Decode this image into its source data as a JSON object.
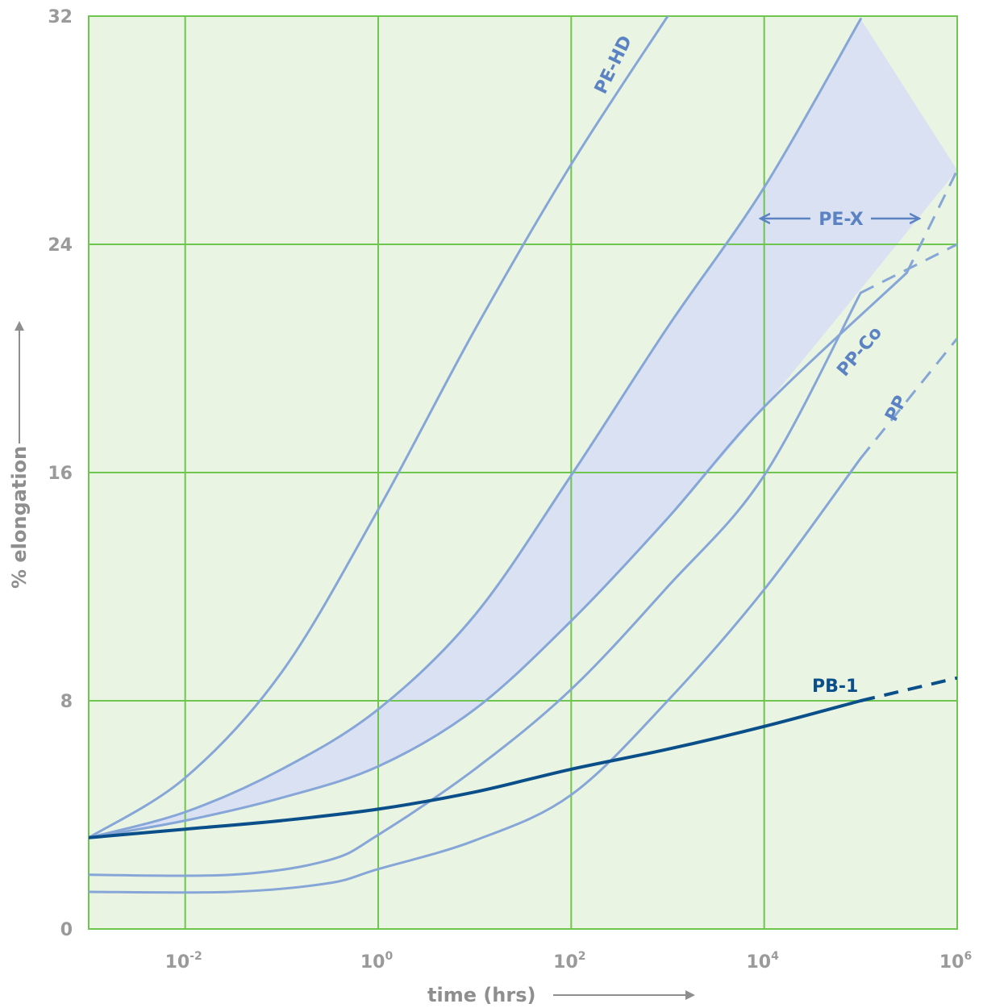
{
  "chart_data": {
    "type": "line",
    "title": "",
    "xlabel": "time (hrs)",
    "ylabel": "% elongation",
    "x_scale": "log",
    "xlim": [
      0.001,
      1000000
    ],
    "ylim": [
      0,
      32
    ],
    "x_ticks": [
      {
        "value": 0.01,
        "base": "10",
        "exp": "-2"
      },
      {
        "value": 1,
        "base": "10",
        "exp": "0"
      },
      {
        "value": 100,
        "base": "10",
        "exp": "2"
      },
      {
        "value": 10000,
        "base": "10",
        "exp": "4"
      },
      {
        "value": 1000000,
        "base": "10",
        "exp": "6"
      }
    ],
    "y_ticks": [
      "0",
      "8",
      "16",
      "24",
      "32"
    ],
    "grid": true,
    "colors": {
      "background": "#eaf4e2",
      "grid": "#6ec64e",
      "curve": "#86a6d8",
      "band": "#d7dff4",
      "pb1": "#0b4f8a",
      "axis_text": "#9a9a9a",
      "label": "#5b82c2"
    },
    "band": {
      "name": "PE-X",
      "upper": [
        [
          0.001,
          3.2
        ],
        [
          0.01,
          4.1
        ],
        [
          0.1,
          5.6
        ],
        [
          1,
          7.7
        ],
        [
          10,
          11.0
        ],
        [
          100,
          15.9
        ],
        [
          1000,
          21.1
        ],
        [
          10000,
          26.0
        ],
        [
          100000,
          31.9
        ]
      ],
      "lower": [
        [
          0.001,
          3.2
        ],
        [
          0.01,
          3.8
        ],
        [
          0.1,
          4.6
        ],
        [
          1,
          5.7
        ],
        [
          10,
          7.7
        ],
        [
          100,
          10.8
        ],
        [
          1000,
          14.4
        ],
        [
          10000,
          18.3
        ],
        [
          1000000,
          26.6
        ]
      ],
      "lower_dashed_from": 300000
    },
    "series": [
      {
        "name": "PE-HD",
        "style": "solid",
        "values": [
          [
            0.001,
            3.2
          ],
          [
            0.01,
            5.3
          ],
          [
            0.1,
            9.0
          ],
          [
            1,
            14.7
          ],
          [
            10,
            21.0
          ],
          [
            100,
            26.8
          ],
          [
            1000,
            32.0
          ]
        ]
      },
      {
        "name": "PE-X",
        "style": "solid",
        "values": [
          [
            0.001,
            3.2
          ],
          [
            0.01,
            4.1
          ],
          [
            0.1,
            5.6
          ],
          [
            1,
            7.7
          ],
          [
            10,
            11.0
          ],
          [
            100,
            15.9
          ],
          [
            1000,
            21.1
          ],
          [
            10000,
            26.0
          ],
          [
            100000,
            31.9
          ]
        ]
      },
      {
        "name": "PE-X",
        "style": "solid",
        "dashed_from": 300000,
        "values": [
          [
            0.001,
            3.2
          ],
          [
            0.01,
            3.8
          ],
          [
            0.1,
            4.6
          ],
          [
            1,
            5.7
          ],
          [
            10,
            7.7
          ],
          [
            100,
            10.8
          ],
          [
            1000,
            14.4
          ],
          [
            10000,
            18.3
          ],
          [
            300000,
            23.0
          ],
          [
            1000000,
            26.6
          ]
        ]
      },
      {
        "name": "PP-Co",
        "style": "solid",
        "dashed_from": 100000,
        "values": [
          [
            0.001,
            1.9
          ],
          [
            0.03,
            1.9
          ],
          [
            0.3,
            2.4
          ],
          [
            1,
            3.3
          ],
          [
            10,
            5.6
          ],
          [
            100,
            8.4
          ],
          [
            1000,
            12.0
          ],
          [
            10000,
            15.9
          ],
          [
            100000,
            22.3
          ],
          [
            1000000,
            24.0
          ]
        ]
      },
      {
        "name": "PP",
        "style": "solid",
        "dashed_from": 100000,
        "values": [
          [
            0.001,
            1.3
          ],
          [
            0.03,
            1.3
          ],
          [
            0.3,
            1.6
          ],
          [
            1,
            2.1
          ],
          [
            10,
            3.1
          ],
          [
            100,
            4.7
          ],
          [
            1000,
            8.0
          ],
          [
            10000,
            11.9
          ],
          [
            100000,
            16.5
          ],
          [
            1000000,
            20.7
          ]
        ]
      },
      {
        "name": "PB-1",
        "style": "solid",
        "dashed_from": 100000,
        "values": [
          [
            0.001,
            3.2
          ],
          [
            0.01,
            3.5
          ],
          [
            0.1,
            3.8
          ],
          [
            1,
            4.2
          ],
          [
            10,
            4.8
          ],
          [
            100,
            5.6
          ],
          [
            1000,
            6.3
          ],
          [
            10000,
            7.1
          ],
          [
            100000,
            8.0
          ],
          [
            1000000,
            8.8
          ]
        ]
      }
    ],
    "annotations": [
      "PE-HD",
      "PE-X",
      "PP-Co",
      "PP",
      "PB-1"
    ]
  }
}
